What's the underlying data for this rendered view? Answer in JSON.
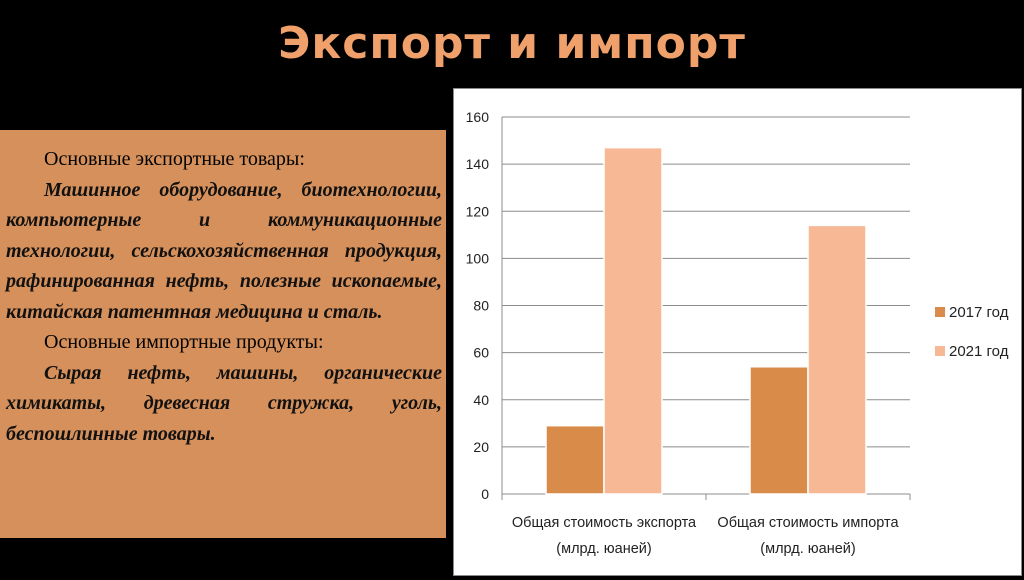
{
  "slide": {
    "title": "Экспорт и импорт",
    "export_heading": "Основные экспортные товары:",
    "export_text": "Машинное оборудование, биотехнологии, компьютерные и коммуникационные технологии, сельскохозяйственная продукция, рафинированная нефть, полезные ископаемые, китайская патентная медицина и сталь.",
    "import_heading": "Основные импортные продукты:",
    "import_text": "Сырая нефть, машины, органические химикаты, древесная стружка, уголь, беспошлинные товары."
  },
  "colors": {
    "background": "#000000",
    "title": "#f0a06a",
    "text_panel": "#d6905b",
    "series_2017": "#d98c4a",
    "series_2021": "#f7b896"
  },
  "chart_data": {
    "type": "bar",
    "categories": [
      [
        "Общая стоимость экспорта",
        "(млрд. юаней)"
      ],
      [
        "Общая стоимость импорта",
        "(млрд. юаней)"
      ]
    ],
    "series": [
      {
        "name": "2017 год",
        "values": [
          29,
          54
        ],
        "color": "#d98c4a"
      },
      {
        "name": "2021 год",
        "values": [
          147,
          114
        ],
        "color": "#f7b896"
      }
    ],
    "ylim": [
      0,
      160
    ],
    "yticks": [
      0,
      20,
      40,
      60,
      80,
      100,
      120,
      140,
      160
    ],
    "grid": true,
    "legend_position": "right"
  }
}
